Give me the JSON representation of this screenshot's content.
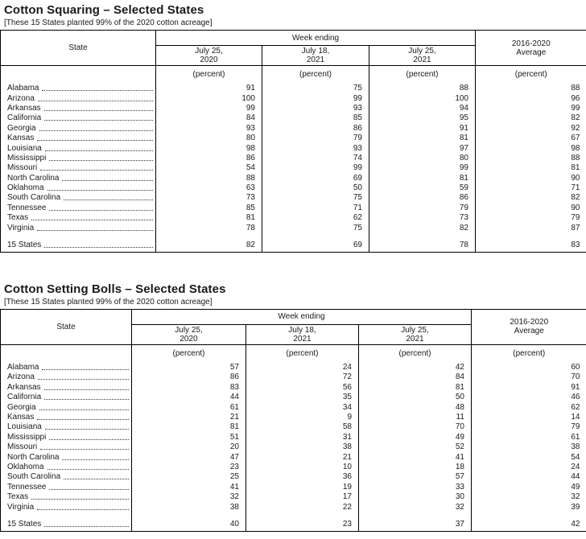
{
  "tables": [
    {
      "title": "Cotton Squaring – Selected States",
      "subtitle": "[These 15 States planted 99% of the 2020 cotton acreage]",
      "header": {
        "state_label": "State",
        "week_ending_label": "Week ending",
        "columns": [
          {
            "line1": "July 25,",
            "line2": "2020"
          },
          {
            "line1": "July 18,",
            "line2": "2021"
          },
          {
            "line1": "July 25,",
            "line2": "2021"
          }
        ],
        "average_line1": "2016-2020",
        "average_line2": "Average",
        "unit_label": "(percent)"
      },
      "rows": [
        {
          "state": "Alabama",
          "values": [
            91,
            75,
            88,
            88
          ]
        },
        {
          "state": "Arizona",
          "values": [
            100,
            99,
            100,
            96
          ]
        },
        {
          "state": "Arkansas",
          "values": [
            99,
            93,
            94,
            99
          ]
        },
        {
          "state": "California",
          "values": [
            84,
            85,
            95,
            82
          ]
        },
        {
          "state": "Georgia",
          "values": [
            93,
            86,
            91,
            92
          ]
        },
        {
          "state": "Kansas",
          "values": [
            80,
            79,
            81,
            67
          ]
        },
        {
          "state": "Louisiana",
          "values": [
            98,
            93,
            97,
            98
          ]
        },
        {
          "state": "Mississippi",
          "values": [
            86,
            74,
            80,
            88
          ]
        },
        {
          "state": "Missouri",
          "values": [
            54,
            99,
            99,
            81
          ]
        },
        {
          "state": "North Carolina",
          "values": [
            88,
            69,
            81,
            90
          ]
        },
        {
          "state": "Oklahoma",
          "values": [
            63,
            50,
            59,
            71
          ]
        },
        {
          "state": "South Carolina",
          "values": [
            73,
            75,
            86,
            82
          ]
        },
        {
          "state": "Tennessee",
          "values": [
            85,
            71,
            79,
            90
          ]
        },
        {
          "state": "Texas",
          "values": [
            81,
            62,
            73,
            79
          ]
        },
        {
          "state": "Virginia",
          "values": [
            78,
            75,
            82,
            87
          ]
        }
      ],
      "total_row": {
        "state": "15 States",
        "values": [
          82,
          69,
          78,
          83
        ]
      }
    },
    {
      "title": "Cotton Setting Bolls – Selected States",
      "subtitle": "[These 15 States planted 99% of the 2020 cotton acreage]",
      "header": {
        "state_label": "State",
        "week_ending_label": "Week ending",
        "columns": [
          {
            "line1": "July 25,",
            "line2": "2020"
          },
          {
            "line1": "July 18,",
            "line2": "2021"
          },
          {
            "line1": "July 25,",
            "line2": "2021"
          }
        ],
        "average_line1": "2016-2020",
        "average_line2": "Average",
        "unit_label": "(percent)"
      },
      "rows": [
        {
          "state": "Alabama",
          "values": [
            57,
            24,
            42,
            60
          ]
        },
        {
          "state": "Arizona",
          "values": [
            86,
            72,
            84,
            70
          ]
        },
        {
          "state": "Arkansas",
          "values": [
            83,
            56,
            81,
            91
          ]
        },
        {
          "state": "California",
          "values": [
            44,
            35,
            50,
            46
          ]
        },
        {
          "state": "Georgia",
          "values": [
            61,
            34,
            48,
            62
          ]
        },
        {
          "state": "Kansas",
          "values": [
            21,
            9,
            11,
            14
          ]
        },
        {
          "state": "Louisiana",
          "values": [
            81,
            58,
            70,
            79
          ]
        },
        {
          "state": "Mississippi",
          "values": [
            51,
            31,
            49,
            61
          ]
        },
        {
          "state": "Missouri",
          "values": [
            20,
            38,
            52,
            38
          ]
        },
        {
          "state": "North Carolina",
          "values": [
            47,
            21,
            41,
            54
          ]
        },
        {
          "state": "Oklahoma",
          "values": [
            23,
            10,
            18,
            24
          ]
        },
        {
          "state": "South Carolina",
          "values": [
            25,
            36,
            57,
            44
          ]
        },
        {
          "state": "Tennessee",
          "values": [
            41,
            19,
            33,
            49
          ]
        },
        {
          "state": "Texas",
          "values": [
            32,
            17,
            30,
            32
          ]
        },
        {
          "state": "Virginia",
          "values": [
            38,
            22,
            32,
            39
          ]
        }
      ],
      "total_row": {
        "state": "15 States",
        "values": [
          40,
          23,
          37,
          42
        ]
      }
    }
  ]
}
